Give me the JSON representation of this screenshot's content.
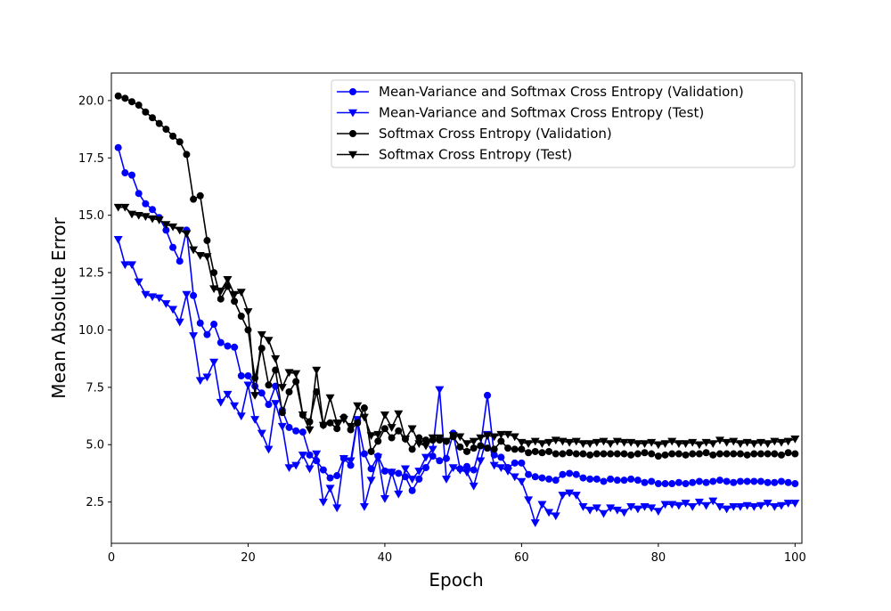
{
  "chart_data": {
    "type": "line",
    "title": "",
    "xlabel": "Epoch",
    "ylabel": "Mean Absolute Error",
    "xlim": [
      0,
      101
    ],
    "ylim": [
      0.7,
      21.2
    ],
    "xticks": [
      0,
      20,
      40,
      60,
      80,
      100
    ],
    "yticks": [
      2.5,
      5.0,
      7.5,
      10.0,
      12.5,
      15.0,
      17.5,
      20.0
    ],
    "legend_position": "top-right",
    "grid": false,
    "x": [
      1,
      2,
      3,
      4,
      5,
      6,
      7,
      8,
      9,
      10,
      11,
      12,
      13,
      14,
      15,
      16,
      17,
      18,
      19,
      20,
      21,
      22,
      23,
      24,
      25,
      26,
      27,
      28,
      29,
      30,
      31,
      32,
      33,
      34,
      35,
      36,
      37,
      38,
      39,
      40,
      41,
      42,
      43,
      44,
      45,
      46,
      47,
      48,
      49,
      50,
      51,
      52,
      53,
      54,
      55,
      56,
      57,
      58,
      59,
      60,
      61,
      62,
      63,
      64,
      65,
      66,
      67,
      68,
      69,
      70,
      71,
      72,
      73,
      74,
      75,
      76,
      77,
      78,
      79,
      80,
      81,
      82,
      83,
      84,
      85,
      86,
      87,
      88,
      89,
      90,
      91,
      92,
      93,
      94,
      95,
      96,
      97,
      98,
      99,
      100
    ],
    "series": [
      {
        "name": "Mean-Variance and Softmax Cross Entropy (Validation)",
        "color": "#0000ff",
        "marker": "circle",
        "values": [
          17.95,
          16.85,
          16.75,
          15.95,
          15.5,
          15.25,
          14.9,
          14.35,
          13.6,
          13.0,
          14.35,
          11.5,
          10.3,
          9.8,
          10.25,
          9.45,
          9.3,
          9.25,
          8.0,
          8.0,
          7.55,
          7.25,
          6.75,
          7.55,
          6.5,
          5.75,
          5.6,
          5.55,
          4.55,
          4.3,
          3.9,
          3.55,
          3.65,
          4.4,
          4.1,
          6.05,
          4.6,
          3.95,
          4.5,
          3.85,
          3.8,
          3.75,
          3.6,
          3.0,
          3.5,
          4.0,
          4.5,
          4.3,
          4.4,
          5.5,
          3.95,
          4.05,
          3.9,
          4.95,
          7.15,
          4.55,
          4.45,
          4.0,
          4.2,
          4.2,
          3.7,
          3.6,
          3.55,
          3.5,
          3.45,
          3.7,
          3.75,
          3.7,
          3.55,
          3.5,
          3.5,
          3.4,
          3.5,
          3.45,
          3.45,
          3.5,
          3.45,
          3.35,
          3.4,
          3.3,
          3.3,
          3.3,
          3.35,
          3.3,
          3.35,
          3.4,
          3.35,
          3.4,
          3.45,
          3.4,
          3.35,
          3.4,
          3.4,
          3.4,
          3.4,
          3.35,
          3.35,
          3.4,
          3.35,
          3.3
        ]
      },
      {
        "name": "Mean-Variance and Softmax Cross Entropy (Test)",
        "color": "#0000ff",
        "marker": "triangle-down",
        "values": [
          13.95,
          12.85,
          12.85,
          12.1,
          11.55,
          11.45,
          11.4,
          11.15,
          10.9,
          10.35,
          11.55,
          9.75,
          7.8,
          7.95,
          8.6,
          6.85,
          7.2,
          6.7,
          6.25,
          7.6,
          6.1,
          5.5,
          4.8,
          6.8,
          5.8,
          4.0,
          4.1,
          4.55,
          3.95,
          4.6,
          2.5,
          3.1,
          2.25,
          4.4,
          4.3,
          6.1,
          2.3,
          3.45,
          4.45,
          2.65,
          3.8,
          2.85,
          3.95,
          3.5,
          3.85,
          4.45,
          4.8,
          7.4,
          3.5,
          4.0,
          3.9,
          3.8,
          3.2,
          4.3,
          5.45,
          4.1,
          4.0,
          3.85,
          3.6,
          3.4,
          2.6,
          1.6,
          2.4,
          2.05,
          1.9,
          2.8,
          2.9,
          2.8,
          2.3,
          2.15,
          2.25,
          2.0,
          2.25,
          2.15,
          2.05,
          2.3,
          2.2,
          2.3,
          2.25,
          2.1,
          2.4,
          2.4,
          2.35,
          2.45,
          2.3,
          2.5,
          2.35,
          2.55,
          2.3,
          2.2,
          2.3,
          2.3,
          2.35,
          2.3,
          2.35,
          2.45,
          2.3,
          2.35,
          2.45,
          2.45
        ]
      },
      {
        "name": "Softmax Cross Entropy (Validation)",
        "color": "#000000",
        "marker": "circle",
        "values": [
          20.2,
          20.1,
          19.95,
          19.8,
          19.5,
          19.25,
          19.0,
          18.75,
          18.45,
          18.2,
          17.65,
          15.7,
          15.85,
          13.9,
          12.5,
          11.35,
          11.9,
          11.25,
          10.6,
          10.0,
          7.9,
          9.2,
          7.6,
          8.25,
          6.4,
          7.3,
          7.75,
          6.3,
          6.0,
          7.3,
          5.85,
          5.95,
          5.7,
          6.2,
          5.65,
          5.95,
          6.6,
          4.7,
          5.15,
          5.7,
          5.3,
          5.6,
          5.25,
          4.8,
          5.3,
          5.2,
          5.2,
          5.2,
          5.15,
          5.35,
          4.9,
          4.7,
          4.85,
          4.95,
          4.85,
          4.8,
          5.15,
          4.85,
          4.8,
          4.8,
          4.65,
          4.7,
          4.65,
          4.7,
          4.6,
          4.6,
          4.65,
          4.6,
          4.6,
          4.55,
          4.6,
          4.6,
          4.6,
          4.6,
          4.6,
          4.55,
          4.6,
          4.65,
          4.6,
          4.5,
          4.55,
          4.6,
          4.6,
          4.55,
          4.6,
          4.6,
          4.65,
          4.55,
          4.6,
          4.6,
          4.6,
          4.6,
          4.55,
          4.6,
          4.6,
          4.6,
          4.6,
          4.55,
          4.65,
          4.6
        ]
      },
      {
        "name": "Softmax Cross Entropy (Test)",
        "color": "#000000",
        "marker": "triangle-down",
        "values": [
          15.35,
          15.35,
          15.05,
          15.0,
          14.95,
          14.85,
          14.8,
          14.6,
          14.5,
          14.35,
          14.2,
          13.5,
          13.25,
          13.2,
          11.8,
          11.7,
          12.2,
          11.55,
          11.65,
          10.8,
          7.15,
          9.8,
          9.55,
          8.75,
          7.5,
          8.15,
          8.1,
          6.3,
          5.65,
          8.25,
          5.85,
          7.05,
          5.95,
          6.1,
          5.8,
          6.7,
          6.2,
          5.4,
          5.45,
          6.3,
          5.75,
          6.35,
          5.25,
          5.7,
          5.05,
          4.95,
          5.3,
          5.3,
          5.15,
          5.4,
          5.35,
          5.05,
          5.15,
          5.3,
          5.4,
          5.35,
          5.45,
          5.45,
          5.35,
          5.1,
          5.05,
          5.15,
          5.05,
          5.1,
          5.2,
          5.15,
          5.1,
          5.15,
          5.05,
          5.05,
          5.1,
          5.15,
          5.05,
          5.15,
          5.1,
          5.1,
          5.05,
          5.05,
          5.1,
          5.0,
          5.05,
          5.15,
          5.05,
          5.05,
          5.1,
          5.0,
          5.1,
          5.05,
          5.2,
          5.1,
          5.15,
          5.05,
          5.1,
          5.05,
          5.1,
          5.05,
          5.15,
          5.1,
          5.15,
          5.25
        ]
      }
    ]
  }
}
